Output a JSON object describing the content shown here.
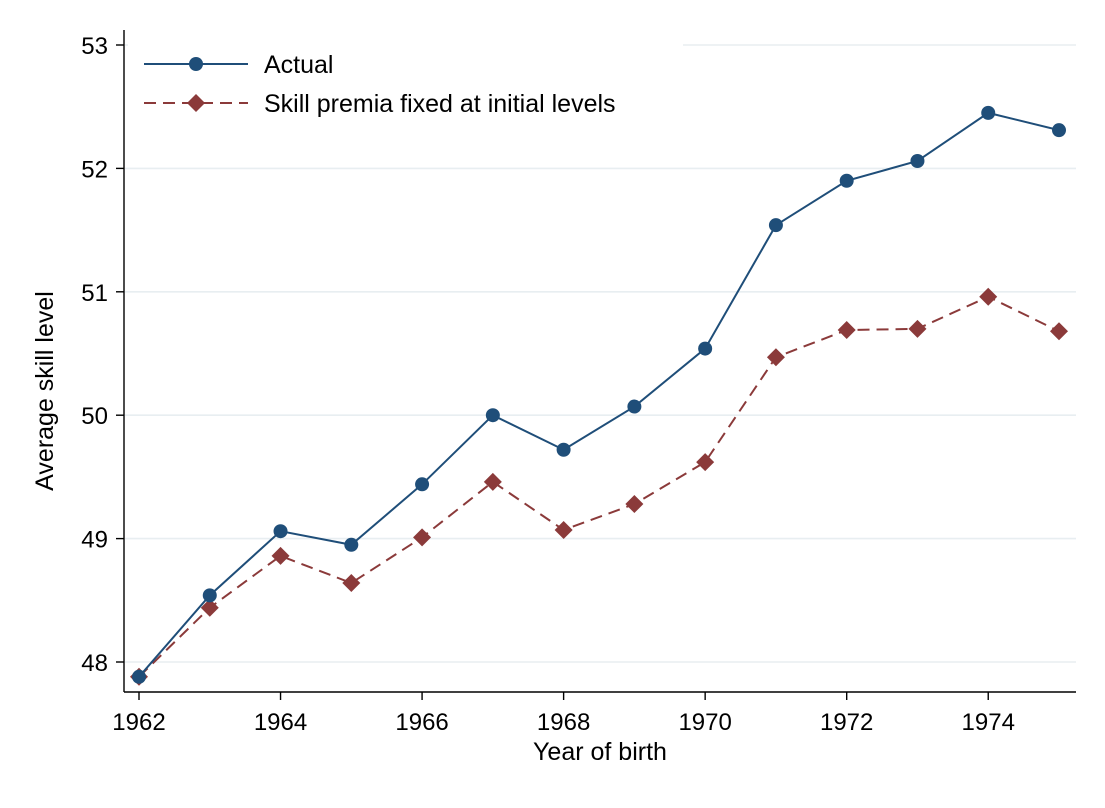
{
  "chart_data": {
    "type": "line",
    "xlabel": "Year of birth",
    "ylabel": "Average skill level",
    "xlim": [
      1962,
      1975
    ],
    "ylim": [
      48,
      53
    ],
    "xticks": [
      1962,
      1964,
      1966,
      1968,
      1970,
      1972,
      1974
    ],
    "yticks": [
      48,
      49,
      50,
      51,
      52,
      53
    ],
    "grid": "horizontal",
    "legend_position": "top-left",
    "x": [
      1962,
      1963,
      1964,
      1965,
      1966,
      1967,
      1968,
      1969,
      1970,
      1971,
      1972,
      1973,
      1974,
      1975
    ],
    "series": [
      {
        "name": "Actual",
        "values": [
          47.88,
          48.54,
          49.06,
          48.95,
          49.44,
          50.0,
          49.72,
          50.07,
          50.54,
          51.54,
          51.9,
          52.06,
          52.45,
          52.31
        ],
        "color": "#1f4e79",
        "marker": "circle",
        "line_style": "solid"
      },
      {
        "name": "Skill premia fixed at initial levels",
        "values": [
          47.88,
          48.44,
          48.86,
          48.64,
          49.01,
          49.46,
          49.07,
          49.28,
          49.62,
          50.47,
          50.69,
          50.7,
          50.96,
          50.68
        ],
        "color": "#8b3a3a",
        "marker": "diamond",
        "line_style": "dashed"
      }
    ]
  },
  "colors": {
    "grid": "#e8eef1",
    "axis": "#000000"
  }
}
